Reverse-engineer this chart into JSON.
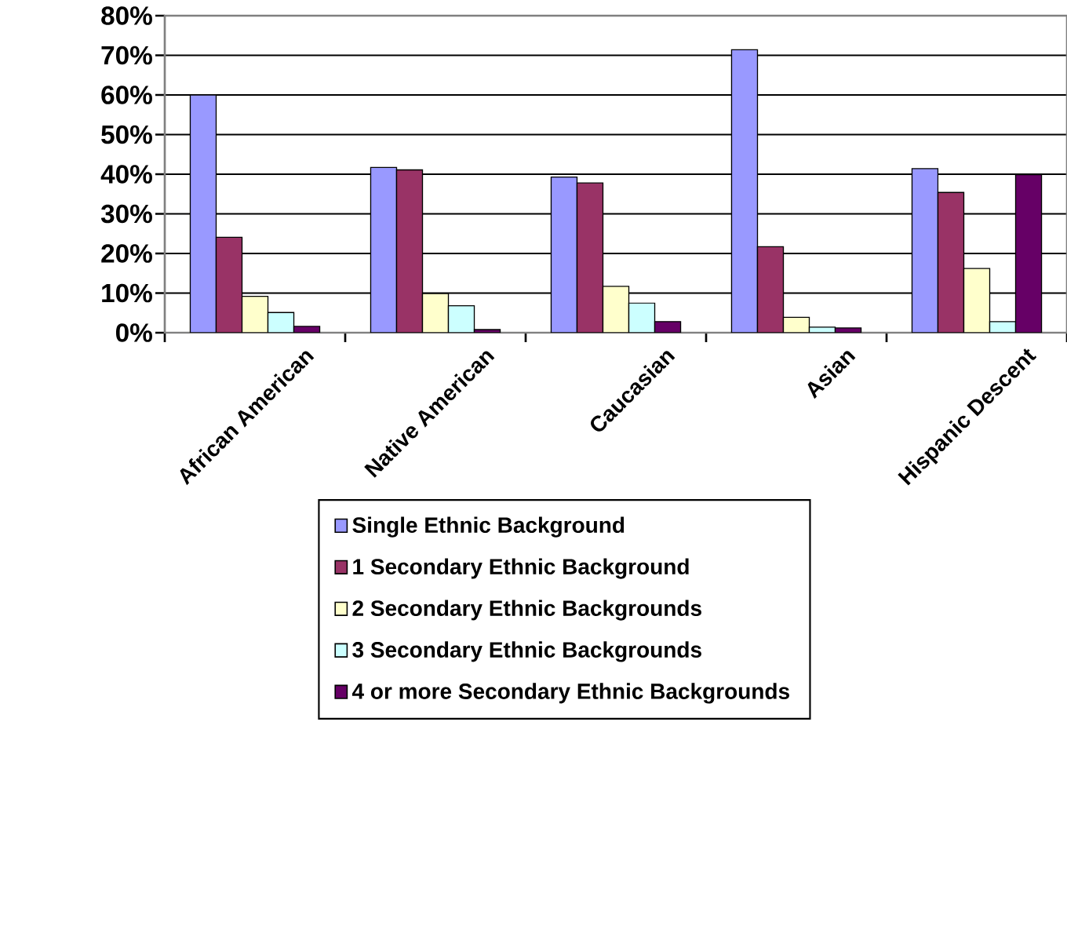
{
  "chart_data": {
    "type": "bar",
    "categories": [
      "African American",
      "Native American",
      "Caucasian",
      "Asian",
      "Hispanic Descent"
    ],
    "series": [
      {
        "name": "Single Ethnic Background",
        "color": "#9999ff",
        "values": [
          60,
          41.7,
          39.3,
          71.4,
          41.4
        ]
      },
      {
        "name": "1 Secondary Ethnic Background",
        "color": "#993366",
        "values": [
          24.1,
          41.1,
          37.8,
          21.7,
          35.4
        ]
      },
      {
        "name": "2 Secondary Ethnic Backgrounds",
        "color": "#ffffcc",
        "values": [
          9.2,
          9.9,
          11.7,
          3.9,
          16.2
        ]
      },
      {
        "name": "3 Secondary Ethnic Backgrounds",
        "color": "#ccffff",
        "values": [
          5.1,
          6.8,
          7.5,
          1.4,
          2.8
        ]
      },
      {
        "name": "4 or more Secondary Ethnic Backgrounds",
        "color": "#660066",
        "values": [
          1.6,
          0.8,
          2.8,
          1.2,
          39.9
        ]
      }
    ],
    "ylim": [
      0,
      80
    ],
    "yticks": [
      {
        "value": 0,
        "label": "0%"
      },
      {
        "value": 10,
        "label": "10%"
      },
      {
        "value": 20,
        "label": "20%"
      },
      {
        "value": 30,
        "label": "30%"
      },
      {
        "value": 40,
        "label": "40%"
      },
      {
        "value": 50,
        "label": "50%"
      },
      {
        "value": 60,
        "label": "60%"
      },
      {
        "value": 70,
        "label": "70%"
      },
      {
        "value": 80,
        "label": "80%"
      }
    ],
    "grid": "y",
    "legend": "bottom"
  }
}
